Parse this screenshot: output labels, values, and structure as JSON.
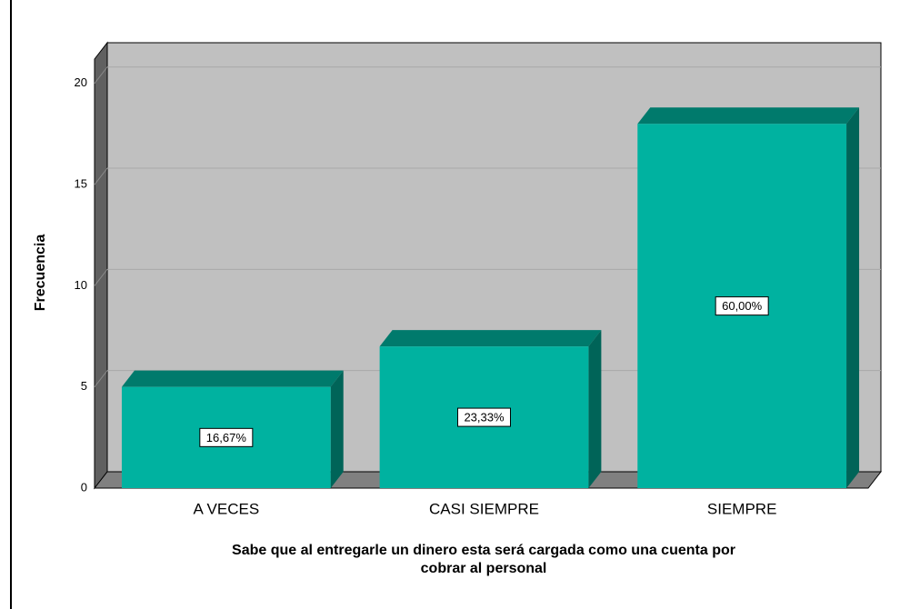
{
  "chart_data": {
    "type": "bar3d",
    "x_label": [
      "Sabe que al entregarle un dinero esta será cargada como una cuenta por",
      "cobrar al personal"
    ],
    "y_label": "Frecuencia",
    "categories": [
      "A VECES",
      "CASI SIEMPRE",
      "SIEMPRE"
    ],
    "values": [
      5,
      7,
      18
    ],
    "annotations": [
      "16,67%",
      "23,33%",
      "60,00%"
    ],
    "color": "#00b2a0",
    "ylim": [
      0,
      21.2
    ],
    "yticks": [
      0,
      5,
      10,
      15,
      20
    ],
    "grid": true
  }
}
